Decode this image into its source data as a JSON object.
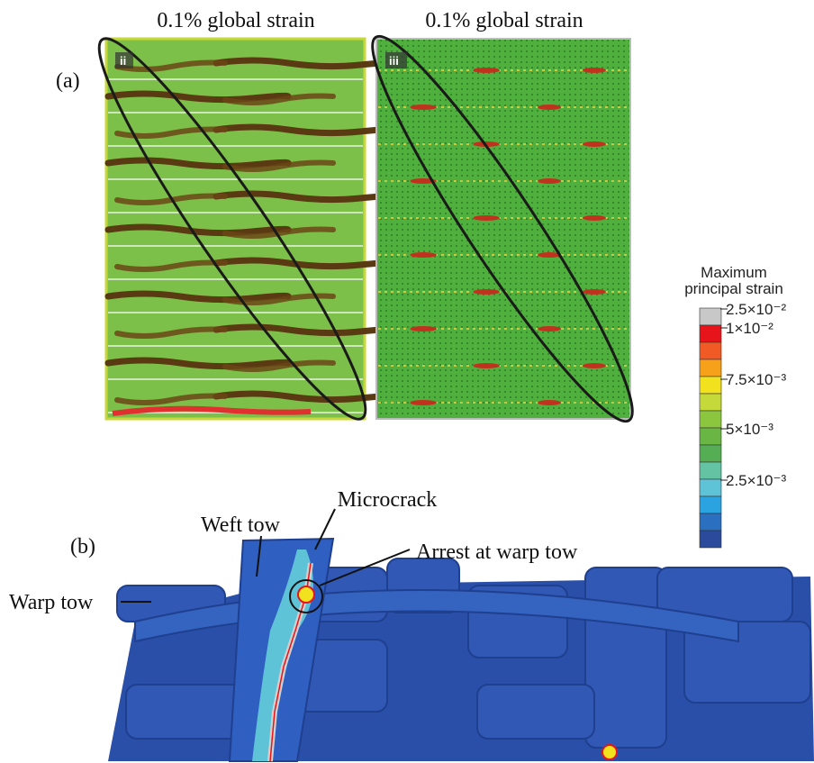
{
  "panel_a": {
    "label": "(a)",
    "images": [
      {
        "title": "0.1% global strain",
        "tag": "ii"
      },
      {
        "title": "0.1% global strain",
        "tag": "iii"
      }
    ],
    "colorbar": {
      "title_lines": [
        "Maximum",
        "principal strain"
      ],
      "ticks": [
        "2.5×10⁻²",
        "1×10⁻²",
        "7.5×10⁻³",
        "5×10⁻³",
        "2.5×10⁻³"
      ]
    }
  },
  "panel_b": {
    "label": "(b)",
    "annotations": [
      "Microcrack",
      "Weft tow",
      "Arrest at warp tow",
      "Warp tow"
    ]
  }
}
